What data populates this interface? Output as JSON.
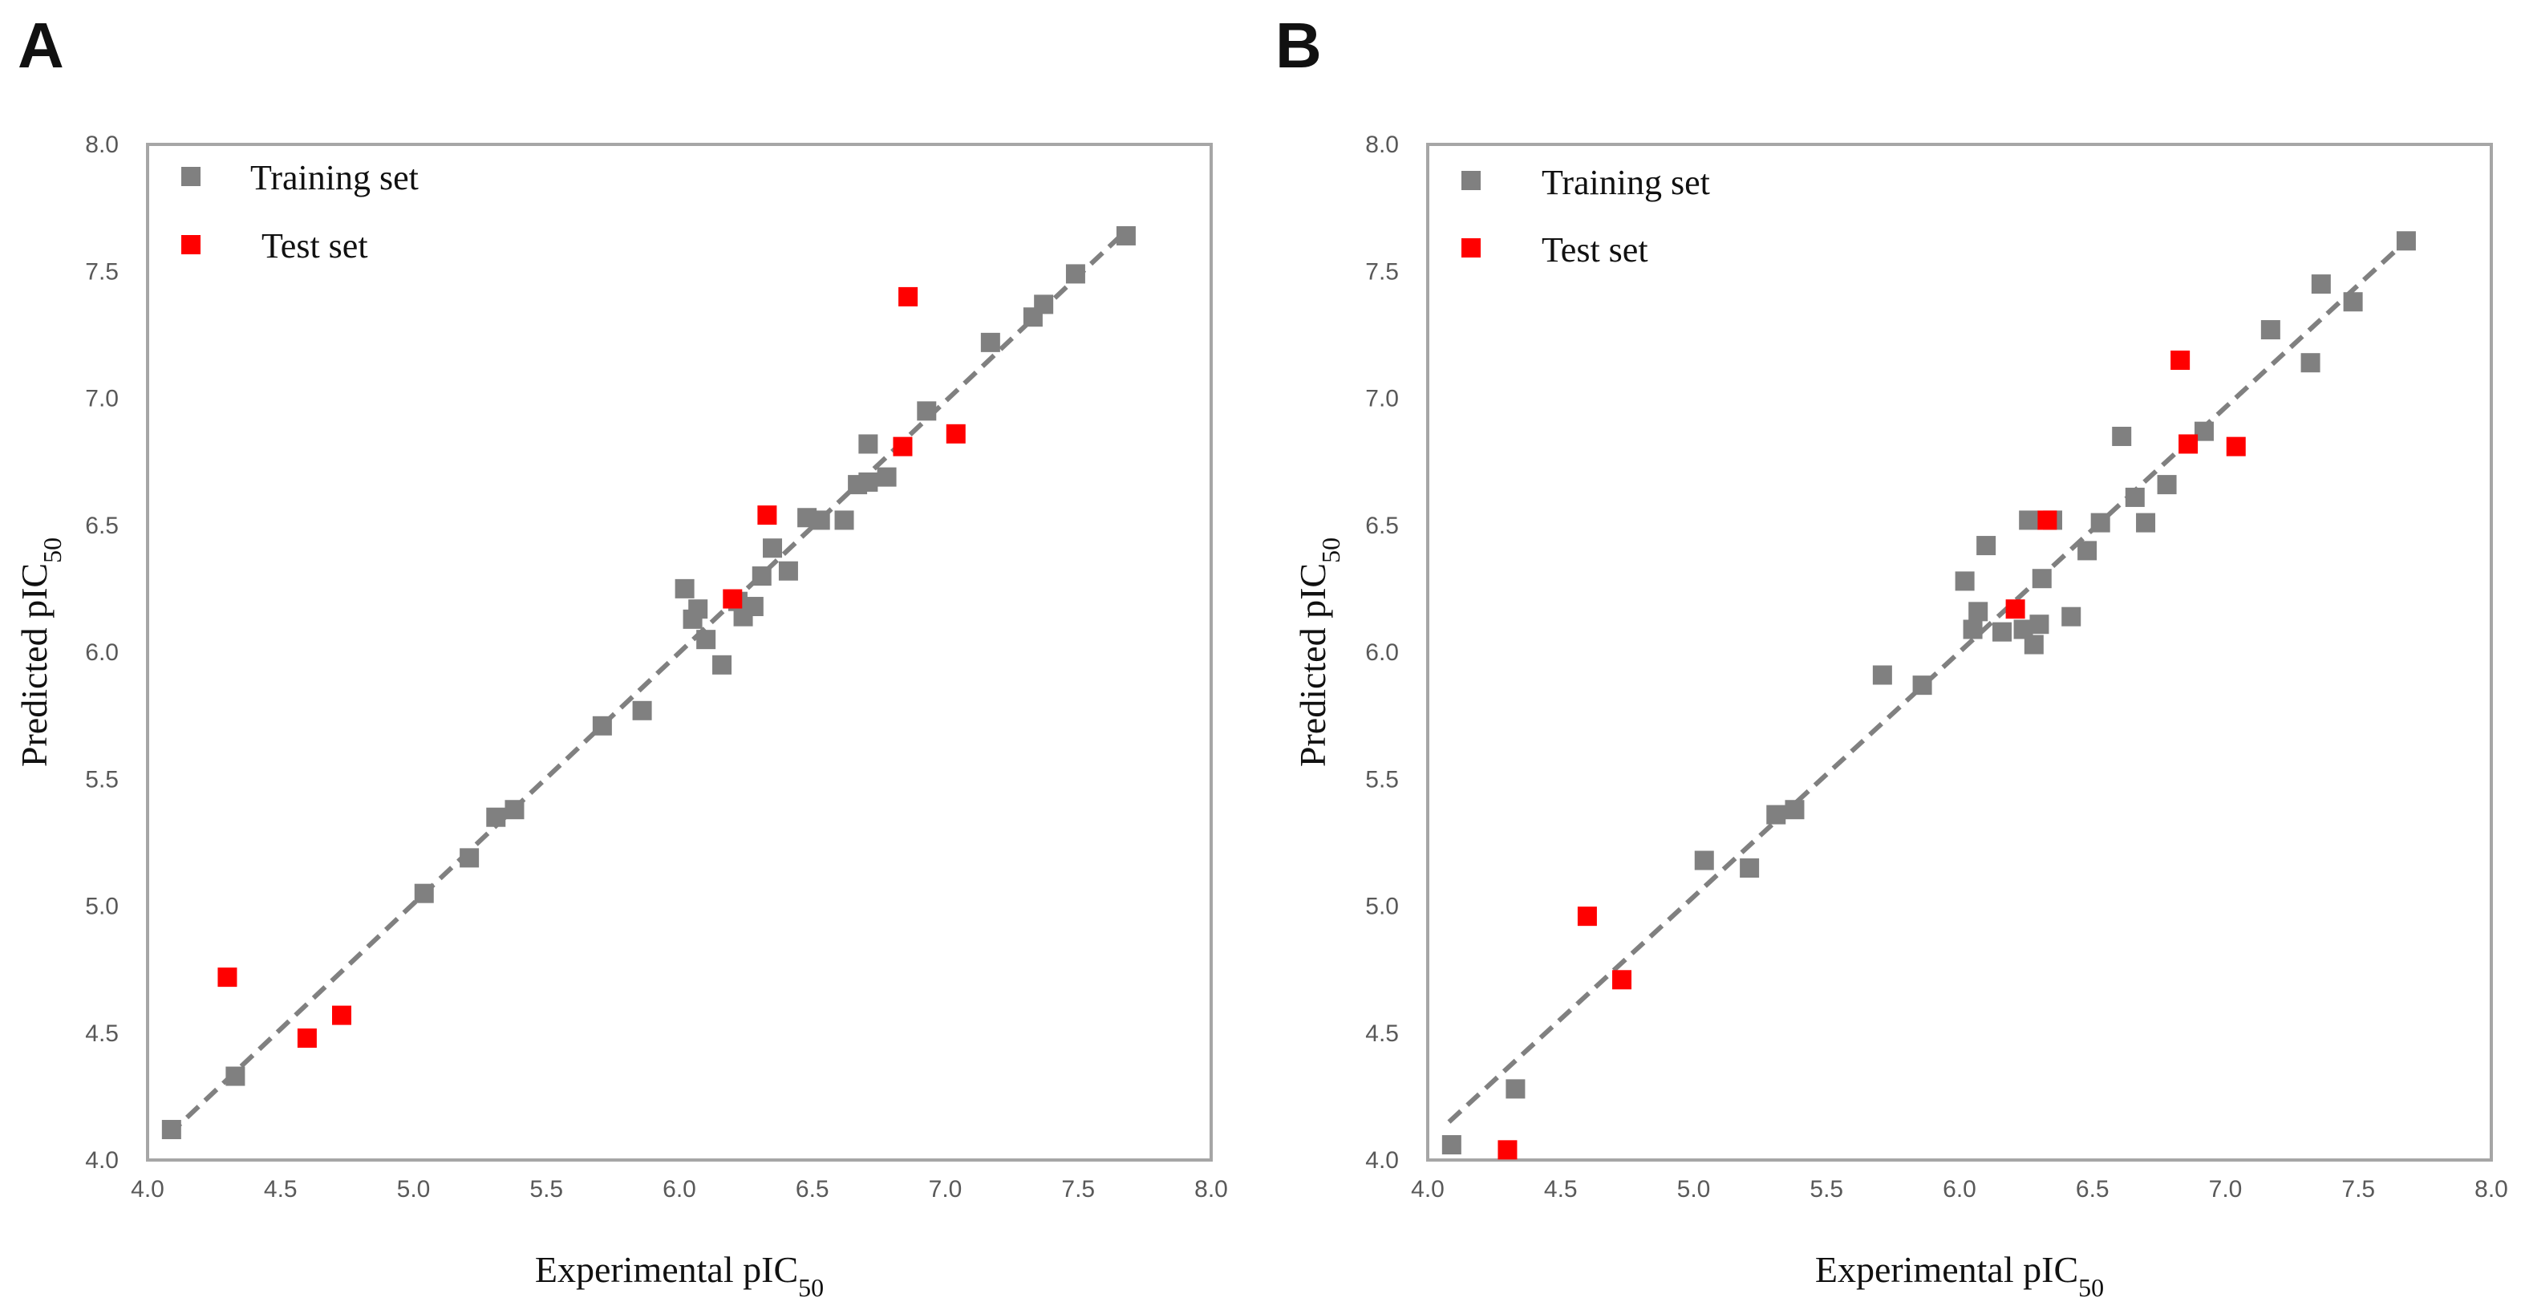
{
  "chart_data": [
    {
      "panel": "A",
      "type": "scatter",
      "xlabel": "Experimental pIC",
      "xlabel_sub": "50",
      "ylabel": "Predicted pIC",
      "ylabel_sub": "50",
      "xlim": [
        4.0,
        8.0
      ],
      "ylim": [
        4.0,
        8.0
      ],
      "ticks": [
        "4.0",
        "4.5",
        "5.0",
        "5.5",
        "6.0",
        "6.5",
        "7.0",
        "7.5",
        "8.0"
      ],
      "grid": false,
      "legend_position": "top-left",
      "trend_line": {
        "style": "dashed",
        "color": "#808080",
        "x": [
          4.08,
          7.68
        ],
        "y": [
          4.1,
          7.66
        ]
      },
      "series": [
        {
          "name": "Training set",
          "color": "#808080",
          "marker": "square",
          "points": [
            [
              4.09,
              4.12
            ],
            [
              4.33,
              4.33
            ],
            [
              5.04,
              5.05
            ],
            [
              5.21,
              5.19
            ],
            [
              5.31,
              5.35
            ],
            [
              5.38,
              5.38
            ],
            [
              5.71,
              5.71
            ],
            [
              5.86,
              5.77
            ],
            [
              6.02,
              6.25
            ],
            [
              6.05,
              6.13
            ],
            [
              6.07,
              6.17
            ],
            [
              6.1,
              6.05
            ],
            [
              6.16,
              5.95
            ],
            [
              6.22,
              6.2
            ],
            [
              6.24,
              6.14
            ],
            [
              6.28,
              6.18
            ],
            [
              6.31,
              6.3
            ],
            [
              6.35,
              6.41
            ],
            [
              6.41,
              6.32
            ],
            [
              6.48,
              6.53
            ],
            [
              6.53,
              6.52
            ],
            [
              6.62,
              6.52
            ],
            [
              6.67,
              6.66
            ],
            [
              6.71,
              6.67
            ],
            [
              6.71,
              6.82
            ],
            [
              6.78,
              6.69
            ],
            [
              6.93,
              6.95
            ],
            [
              7.17,
              7.22
            ],
            [
              7.33,
              7.32
            ],
            [
              7.37,
              7.37
            ],
            [
              7.49,
              7.49
            ],
            [
              7.68,
              7.64
            ]
          ]
        },
        {
          "name": "Test set",
          "color": "#ff0000",
          "marker": "square",
          "points": [
            [
              4.3,
              4.72
            ],
            [
              4.6,
              4.48
            ],
            [
              4.73,
              4.57
            ],
            [
              6.2,
              6.21
            ],
            [
              6.33,
              6.54
            ],
            [
              6.84,
              6.81
            ],
            [
              6.86,
              7.4
            ],
            [
              7.04,
              6.86
            ]
          ]
        }
      ]
    },
    {
      "panel": "B",
      "type": "scatter",
      "xlabel": "Experimental pIC",
      "xlabel_sub": "50",
      "ylabel": "Predicted pIC",
      "ylabel_sub": "50",
      "xlim": [
        4.0,
        8.0
      ],
      "ylim": [
        4.0,
        8.0
      ],
      "ticks": [
        "4.0",
        "4.5",
        "5.0",
        "5.5",
        "6.0",
        "6.5",
        "7.0",
        "7.5",
        "8.0"
      ],
      "grid": false,
      "legend_position": "top-left",
      "trend_line": {
        "style": "dashed",
        "color": "#808080",
        "x": [
          4.08,
          7.68
        ],
        "y": [
          4.15,
          7.62
        ]
      },
      "series": [
        {
          "name": "Training set",
          "color": "#808080",
          "marker": "square",
          "points": [
            [
              4.09,
              4.06
            ],
            [
              4.33,
              4.28
            ],
            [
              5.04,
              5.18
            ],
            [
              5.21,
              5.15
            ],
            [
              5.31,
              5.36
            ],
            [
              5.38,
              5.38
            ],
            [
              5.71,
              5.91
            ],
            [
              5.86,
              5.87
            ],
            [
              6.02,
              6.28
            ],
            [
              6.05,
              6.09
            ],
            [
              6.07,
              6.16
            ],
            [
              6.1,
              6.42
            ],
            [
              6.16,
              6.08
            ],
            [
              6.24,
              6.09
            ],
            [
              6.26,
              6.52
            ],
            [
              6.28,
              6.03
            ],
            [
              6.3,
              6.11
            ],
            [
              6.31,
              6.29
            ],
            [
              6.35,
              6.52
            ],
            [
              6.42,
              6.14
            ],
            [
              6.48,
              6.4
            ],
            [
              6.53,
              6.51
            ],
            [
              6.61,
              6.85
            ],
            [
              6.66,
              6.61
            ],
            [
              6.7,
              6.51
            ],
            [
              6.78,
              6.66
            ],
            [
              6.92,
              6.87
            ],
            [
              7.17,
              7.27
            ],
            [
              7.32,
              7.14
            ],
            [
              7.36,
              7.45
            ],
            [
              7.48,
              7.38
            ],
            [
              7.68,
              7.62
            ]
          ]
        },
        {
          "name": "Test set",
          "color": "#ff0000",
          "marker": "square",
          "points": [
            [
              4.3,
              4.04
            ],
            [
              4.6,
              4.96
            ],
            [
              4.73,
              4.71
            ],
            [
              6.21,
              6.17
            ],
            [
              6.33,
              6.52
            ],
            [
              6.83,
              7.15
            ],
            [
              6.86,
              6.82
            ],
            [
              7.04,
              6.81
            ]
          ]
        }
      ]
    }
  ]
}
